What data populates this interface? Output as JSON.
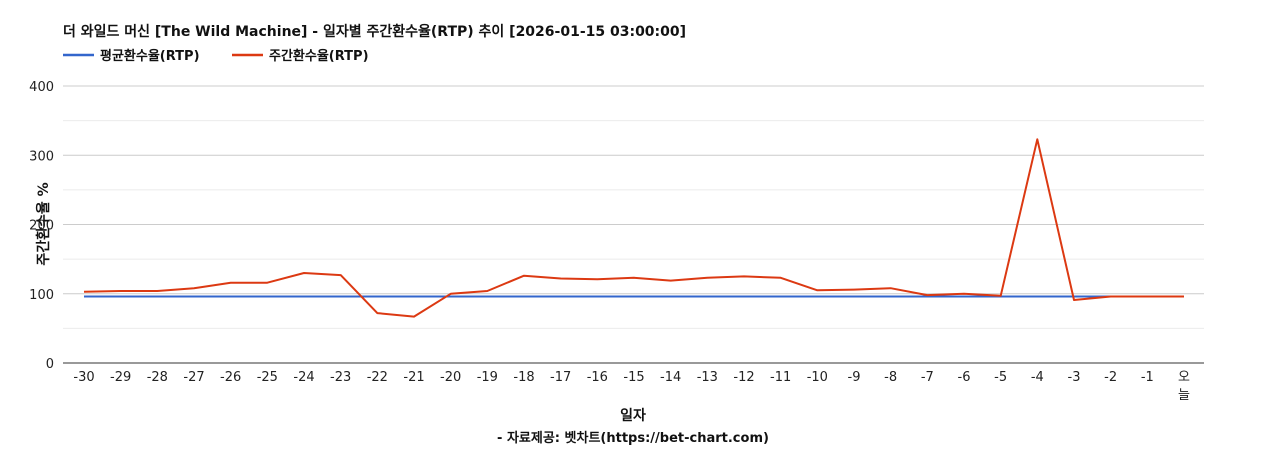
{
  "chart_data": {
    "type": "line",
    "title": "더 와일드 머신 [The Wild Machine] - 일자별 주간환수율(RTP) 추이 [2026-01-15 03:00:00]",
    "xlabel": "일자",
    "ylabel": "주간환수율 %",
    "source": "- 자료제공: 벳차트(https://bet-chart.com)",
    "legend_position": "top-left",
    "ylim": [
      0,
      400
    ],
    "yticks": [
      "0",
      "100",
      "200",
      "300",
      "400"
    ],
    "grid": true,
    "categories": [
      "-30",
      "-29",
      "-28",
      "-27",
      "-26",
      "-25",
      "-24",
      "-23",
      "-22",
      "-21",
      "-20",
      "-19",
      "-18",
      "-17",
      "-16",
      "-15",
      "-14",
      "-13",
      "-12",
      "-11",
      "-10",
      "-9",
      "-8",
      "-7",
      "-6",
      "-5",
      "-4",
      "-3",
      "-2",
      "-1",
      "오늘"
    ],
    "series": [
      {
        "name": "평균환수율(RTP)",
        "color": "#3366cc",
        "values": [
          96,
          96,
          96,
          96,
          96,
          96,
          96,
          96,
          96,
          96,
          96,
          96,
          96,
          96,
          96,
          96,
          96,
          96,
          96,
          96,
          96,
          96,
          96,
          96,
          96,
          96,
          96,
          96,
          96,
          96,
          96
        ]
      },
      {
        "name": "주간환수율(RTP)",
        "color": "#dc3912",
        "values": [
          103,
          104,
          104,
          108,
          116,
          116,
          130,
          127,
          72,
          67,
          100,
          104,
          126,
          122,
          121,
          123,
          119,
          123,
          125,
          123,
          105,
          106,
          108,
          98,
          100,
          97,
          323,
          91,
          96,
          96,
          96
        ]
      }
    ]
  }
}
